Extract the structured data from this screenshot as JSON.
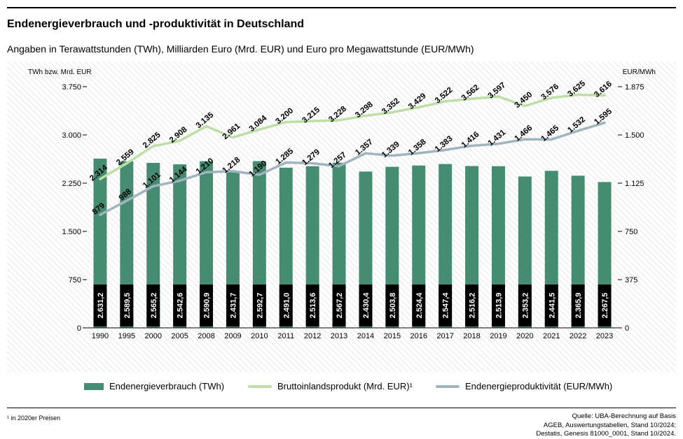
{
  "header": {
    "title": "Endenergieverbrauch und -produktivität in Deutschland",
    "subtitle": "Angaben in Terawattstunden (TWh), Milliarden Euro (Mrd. EUR) und Euro pro Megawattstunde (EUR/MWh)"
  },
  "footer": {
    "footnote": "¹ in 2020er Preisen",
    "source_lines": [
      "Quelle: UBA-Berechnung auf Basis",
      "AGEB, Auswertungstabellen, Stand 10/2024;",
      "Destatis, Genesis 81000_0001, Stand 10/2024."
    ]
  },
  "colors": {
    "bar": "#468c72",
    "gdp_line": "#bddfa7",
    "productivity_line": "#9fb4bc",
    "bar_label_bg": "#000000"
  },
  "chart_data": {
    "type": "bar",
    "categories": [
      "1990",
      "1995",
      "2000",
      "2005",
      "2008",
      "2009",
      "2010",
      "2011",
      "2012",
      "2013",
      "2014",
      "2015",
      "2016",
      "2017",
      "2018",
      "2019",
      "2020",
      "2021",
      "2022",
      "2023"
    ],
    "left_axis": {
      "label": "TWh bzw. Mrd. EUR",
      "min": 0,
      "max": 3750,
      "ticks": [
        0,
        750,
        1500,
        2250,
        3000,
        3750
      ],
      "tick_labels": [
        "0",
        "750",
        "1.500",
        "2.250",
        "3.000",
        "3.750"
      ]
    },
    "right_axis": {
      "label": "EUR/MWh",
      "min": 0,
      "max": 1875,
      "ticks": [
        0,
        375,
        750,
        1125,
        1500,
        1875
      ],
      "tick_labels": [
        "0",
        "375",
        "750",
        "1.125",
        "1.500",
        "1.875"
      ]
    },
    "series": [
      {
        "name": "Endenergieverbrauch (TWh)",
        "type": "bar",
        "axis": "left",
        "values": [
          2631.2,
          2589.5,
          2565.2,
          2542.6,
          2590.9,
          2431.7,
          2592.7,
          2491.0,
          2513.6,
          2567.2,
          2430.4,
          2503.8,
          2524.4,
          2547.4,
          2516.2,
          2513.9,
          2353.2,
          2441.5,
          2365.9,
          2267.5
        ],
        "labels": [
          "2.631,2",
          "2.589,5",
          "2.565,2",
          "2.542,6",
          "2.590,9",
          "2.431,7",
          "2.592,7",
          "2.491,0",
          "2.513,6",
          "2.567,2",
          "2.430,4",
          "2.503,8",
          "2.524,4",
          "2.547,4",
          "2.516,2",
          "2.513,9",
          "2.353,2",
          "2.441,5",
          "2.365,9",
          "2.267,5"
        ]
      },
      {
        "name": "Bruttoinlandsprodukt (Mrd. EUR)¹",
        "type": "line",
        "axis": "left",
        "values": [
          2314,
          2559,
          2825,
          2908,
          3135,
          2961,
          3084,
          3200,
          3215,
          3228,
          3298,
          3352,
          3429,
          3522,
          3562,
          3597,
          3450,
          3576,
          3625,
          3616
        ],
        "labels": [
          "2.314",
          "2.559",
          "2.825",
          "2.908",
          "3.135",
          "2.961",
          "3.084",
          "3.200",
          "3.215",
          "3.228",
          "3.298",
          "3.352",
          "3.429",
          "3.522",
          "3.562",
          "3.597",
          "3.450",
          "3.576",
          "3.625",
          "3.616"
        ]
      },
      {
        "name": "Endenergieproduktivität (EUR/MWh)",
        "type": "line",
        "axis": "right",
        "values": [
          879,
          988,
          1101,
          1144,
          1210,
          1218,
          1190,
          1285,
          1279,
          1257,
          1357,
          1339,
          1358,
          1383,
          1416,
          1431,
          1466,
          1465,
          1532,
          1595
        ],
        "labels": [
          "879",
          "988",
          "1.101",
          "1.144",
          "1.210",
          "1.218",
          "1.190",
          "1.285",
          "1.279",
          "1.257",
          "1.357",
          "1.339",
          "1.358",
          "1.383",
          "1.416",
          "1.431",
          "1.466",
          "1.465",
          "1.532",
          "1.595"
        ]
      }
    ],
    "grid": false,
    "legend": "bottom"
  }
}
